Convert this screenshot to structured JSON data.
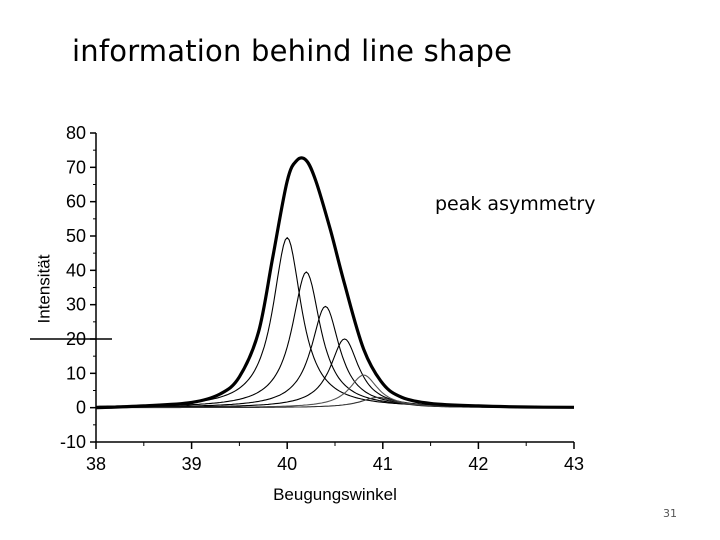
{
  "slide": {
    "title": "information behind line shape",
    "annotation": "peak asymmetry",
    "page_number": "31"
  },
  "chart_data": {
    "type": "line",
    "title": "",
    "xlabel": "Beugungswinkel",
    "ylabel": "Intensität",
    "xlim": [
      38,
      43
    ],
    "ylim": [
      -10,
      80
    ],
    "x_ticks": [
      "38",
      "39",
      "40",
      "41",
      "42",
      "43"
    ],
    "y_ticks": [
      "-10",
      "0",
      "10",
      "20",
      "30",
      "40",
      "50",
      "60",
      "70",
      "80"
    ],
    "grid": false,
    "legend": "none",
    "series": [
      {
        "role": "envelope",
        "color": "#000000",
        "x": [
          38.0,
          38.5,
          39.0,
          39.3,
          39.5,
          39.7,
          39.85,
          40.0,
          40.1,
          40.2,
          40.3,
          40.45,
          40.6,
          40.8,
          41.0,
          41.2,
          41.5,
          42.0,
          42.5,
          43.0
        ],
        "y": [
          0,
          0.5,
          1.5,
          4,
          9,
          22,
          44,
          66,
          72,
          72,
          66,
          52,
          36,
          17,
          7,
          3,
          1.2,
          0.5,
          0.2,
          0.1
        ]
      },
      {
        "role": "component",
        "color": "#000000",
        "center": 40.0,
        "height": 49.5,
        "hwhm": 0.18
      },
      {
        "role": "component",
        "color": "#000000",
        "center": 40.2,
        "height": 39.5,
        "hwhm": 0.18
      },
      {
        "role": "component",
        "color": "#000000",
        "center": 40.4,
        "height": 29.5,
        "hwhm": 0.18
      },
      {
        "role": "component",
        "color": "#000000",
        "center": 40.6,
        "height": 20,
        "hwhm": 0.18
      },
      {
        "role": "component",
        "color": "#555555",
        "center": 40.8,
        "height": 9.5,
        "hwhm": 0.18
      },
      {
        "role": "component",
        "color": "#333333",
        "center": 40.95,
        "height": 3,
        "hwhm": 0.22
      }
    ]
  }
}
